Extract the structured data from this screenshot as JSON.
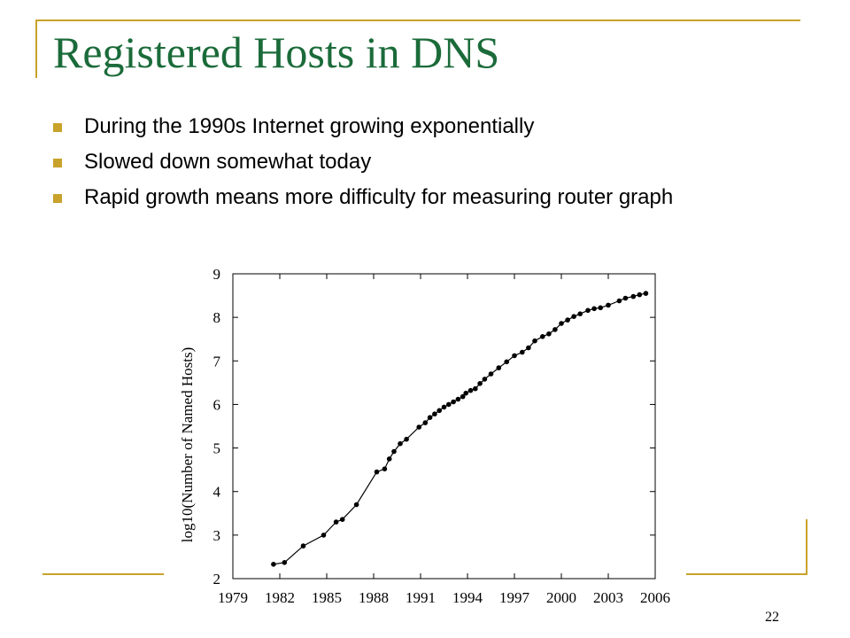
{
  "slide": {
    "title": "Registered Hosts in DNS",
    "bullets": [
      "During the 1990s Internet growing exponentially",
      "Slowed down somewhat today",
      "Rapid growth means more difficulty for measuring router graph"
    ],
    "page_number": "22"
  },
  "colors": {
    "title": "#1b6b3a",
    "accent": "#c8a22a",
    "series": "#000000"
  },
  "chart_data": {
    "type": "line",
    "title": "",
    "xlabel": "",
    "ylabel": "log10(Number of Named Hosts)",
    "xlim": [
      1979,
      2006
    ],
    "ylim": [
      2,
      9
    ],
    "xticks": [
      1979,
      1982,
      1985,
      1988,
      1991,
      1994,
      1997,
      2000,
      2003,
      2006
    ],
    "yticks": [
      2,
      3,
      4,
      5,
      6,
      7,
      8,
      9
    ],
    "grid": false,
    "legend": "none",
    "series": [
      {
        "markers": true,
        "x": [
          1981.6,
          1982.3,
          1983.5,
          1984.8,
          1985.6,
          1986.0,
          1986.9,
          1988.2,
          1988.7,
          1989.0,
          1989.3,
          1989.7,
          1990.1,
          1990.9,
          1991.3,
          1991.6,
          1991.9,
          1992.2,
          1992.5,
          1992.8,
          1993.1,
          1993.4,
          1993.7,
          1993.9,
          1994.2,
          1994.5,
          1994.8,
          1995.1,
          1995.5,
          1996.0,
          1996.5,
          1997.0,
          1997.5,
          1997.9,
          1998.3,
          1998.8,
          1999.2,
          1999.6,
          2000.0,
          2000.4,
          2000.8,
          2001.2,
          2001.7,
          2002.1,
          2002.5,
          2003.0,
          2003.7,
          2004.1,
          2004.6,
          2005.0,
          2005.4
        ],
        "y": [
          2.33,
          2.37,
          2.75,
          3.0,
          3.3,
          3.36,
          3.7,
          4.45,
          4.52,
          4.75,
          4.92,
          5.1,
          5.2,
          5.48,
          5.58,
          5.7,
          5.78,
          5.86,
          5.94,
          6.0,
          6.06,
          6.12,
          6.18,
          6.26,
          6.32,
          6.36,
          6.48,
          6.58,
          6.7,
          6.84,
          6.98,
          7.12,
          7.2,
          7.3,
          7.46,
          7.56,
          7.62,
          7.72,
          7.86,
          7.94,
          8.02,
          8.08,
          8.16,
          8.2,
          8.22,
          8.28,
          8.38,
          8.44,
          8.48,
          8.52,
          8.55
        ]
      }
    ]
  }
}
